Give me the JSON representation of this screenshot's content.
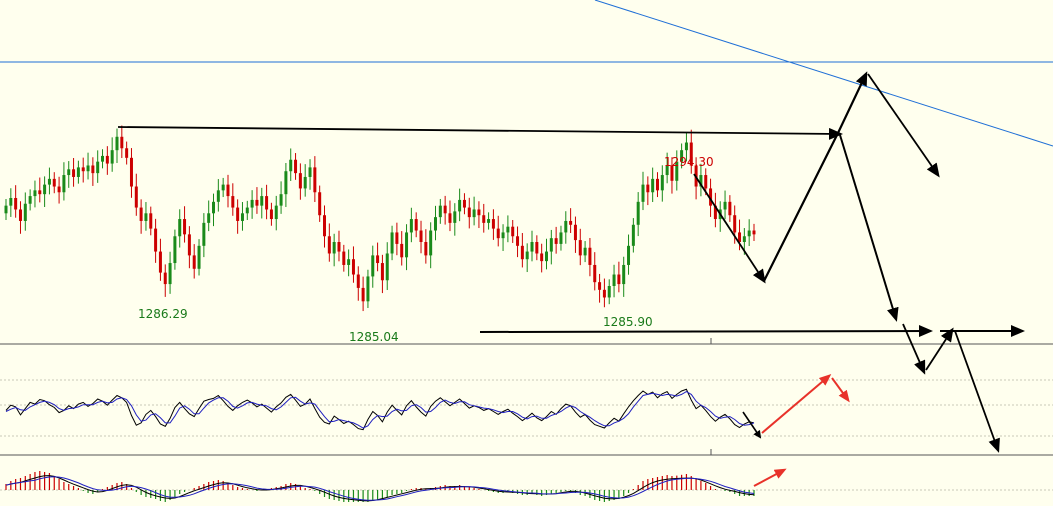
{
  "colors": {
    "background": "#ffffee",
    "bull": "#1a8a1a",
    "bear": "#cc0000",
    "trendline": "#1f6fd6",
    "projection": "#000000",
    "indicator_arrow": "#e8322a",
    "osc_fast": "#000000",
    "osc_slow": "#2020c0",
    "divider": "#555555"
  },
  "chart_data": [
    {
      "type": "candlestick",
      "panel": "price",
      "annotations": [
        {
          "label": "1286.29",
          "kind": "swing-low"
        },
        {
          "label": "1285.04",
          "kind": "swing-low"
        },
        {
          "label": "1285.90",
          "kind": "swing-low"
        },
        {
          "label": "1294.30",
          "kind": "swing-high"
        }
      ],
      "close": [
        1291.0,
        1291.4,
        1290.8,
        1290.2,
        1291.1,
        1291.5,
        1291.8,
        1291.6,
        1292.1,
        1292.4,
        1292.0,
        1291.7,
        1292.6,
        1292.9,
        1292.5,
        1293.0,
        1292.8,
        1293.1,
        1292.7,
        1293.3,
        1293.6,
        1293.2,
        1293.9,
        1294.6,
        1294.0,
        1293.5,
        1292.0,
        1290.9,
        1290.2,
        1290.6,
        1289.8,
        1288.6,
        1287.5,
        1286.9,
        1288.0,
        1289.4,
        1290.3,
        1289.5,
        1288.4,
        1287.7,
        1288.9,
        1290.1,
        1290.6,
        1291.2,
        1291.8,
        1292.1,
        1291.5,
        1290.9,
        1290.2,
        1290.6,
        1290.9,
        1291.3,
        1291.0,
        1291.5,
        1290.8,
        1290.3,
        1291.0,
        1291.6,
        1292.8,
        1293.4,
        1292.7,
        1291.9,
        1292.5,
        1293.0,
        1291.7,
        1290.5,
        1289.4,
        1288.5,
        1289.1,
        1288.6,
        1287.9,
        1288.2,
        1287.4,
        1286.7,
        1286.0,
        1287.3,
        1288.4,
        1288.0,
        1287.1,
        1288.5,
        1289.6,
        1289.0,
        1288.3,
        1289.6,
        1290.3,
        1289.7,
        1289.1,
        1288.4,
        1289.7,
        1290.4,
        1291.0,
        1290.6,
        1290.1,
        1290.7,
        1291.3,
        1290.9,
        1290.4,
        1290.8,
        1290.5,
        1290.1,
        1290.3,
        1289.8,
        1289.3,
        1289.6,
        1289.9,
        1289.4,
        1288.9,
        1288.2,
        1288.6,
        1289.1,
        1288.5,
        1288.1,
        1288.6,
        1289.3,
        1289.0,
        1289.6,
        1290.2,
        1290.0,
        1289.2,
        1288.4,
        1288.8,
        1287.9,
        1287.0,
        1286.6,
        1286.2,
        1286.8,
        1287.4,
        1286.9,
        1287.9,
        1288.9,
        1290.0,
        1291.2,
        1292.1,
        1291.7,
        1292.4,
        1291.8,
        1292.6,
        1293.1,
        1292.3,
        1293.3,
        1293.9,
        1294.3,
        1293.1,
        1292.0,
        1292.6,
        1291.9,
        1291.0,
        1290.3,
        1290.8,
        1291.2,
        1290.5,
        1289.6,
        1289.1,
        1289.4,
        1289.7,
        1289.5
      ]
    },
    {
      "type": "line",
      "panel": "oscillator",
      "series": [
        {
          "values": [
            0.52,
            0.61,
            0.58,
            0.44,
            0.55,
            0.66,
            0.63,
            0.71,
            0.69,
            0.62,
            0.57,
            0.48,
            0.52,
            0.6,
            0.55,
            0.63,
            0.66,
            0.59,
            0.64,
            0.72,
            0.68,
            0.61,
            0.7,
            0.78,
            0.74,
            0.66,
            0.43,
            0.26,
            0.3,
            0.45,
            0.52,
            0.41,
            0.28,
            0.24,
            0.38,
            0.57,
            0.66,
            0.55,
            0.46,
            0.41,
            0.55,
            0.68,
            0.71,
            0.73,
            0.78,
            0.69,
            0.59,
            0.52,
            0.6,
            0.66,
            0.7,
            0.65,
            0.58,
            0.63,
            0.56,
            0.49,
            0.58,
            0.65,
            0.75,
            0.8,
            0.7,
            0.59,
            0.63,
            0.72,
            0.55,
            0.4,
            0.31,
            0.28,
            0.42,
            0.36,
            0.29,
            0.33,
            0.27,
            0.2,
            0.18,
            0.36,
            0.5,
            0.43,
            0.32,
            0.49,
            0.61,
            0.52,
            0.44,
            0.6,
            0.69,
            0.58,
            0.49,
            0.42,
            0.59,
            0.68,
            0.74,
            0.67,
            0.6,
            0.66,
            0.72,
            0.64,
            0.56,
            0.6,
            0.57,
            0.52,
            0.55,
            0.5,
            0.45,
            0.5,
            0.54,
            0.47,
            0.41,
            0.34,
            0.4,
            0.47,
            0.39,
            0.34,
            0.41,
            0.5,
            0.45,
            0.55,
            0.63,
            0.6,
            0.49,
            0.4,
            0.45,
            0.35,
            0.27,
            0.24,
            0.21,
            0.3,
            0.38,
            0.33,
            0.46,
            0.58,
            0.69,
            0.78,
            0.86,
            0.8,
            0.84,
            0.74,
            0.81,
            0.85,
            0.73,
            0.8,
            0.86,
            0.89,
            0.7,
            0.55,
            0.61,
            0.52,
            0.41,
            0.33,
            0.4,
            0.45,
            0.37,
            0.27,
            0.22,
            0.28,
            0.32,
            0.3
          ]
        },
        {
          "values": [
            0.5,
            0.54,
            0.57,
            0.53,
            0.52,
            0.58,
            0.62,
            0.66,
            0.68,
            0.66,
            0.62,
            0.55,
            0.52,
            0.55,
            0.56,
            0.58,
            0.62,
            0.62,
            0.62,
            0.66,
            0.68,
            0.65,
            0.66,
            0.72,
            0.74,
            0.71,
            0.6,
            0.44,
            0.33,
            0.35,
            0.44,
            0.46,
            0.39,
            0.3,
            0.3,
            0.42,
            0.56,
            0.6,
            0.54,
            0.46,
            0.46,
            0.56,
            0.65,
            0.7,
            0.74,
            0.74,
            0.68,
            0.59,
            0.56,
            0.6,
            0.65,
            0.66,
            0.63,
            0.61,
            0.6,
            0.55,
            0.53,
            0.58,
            0.66,
            0.74,
            0.75,
            0.68,
            0.63,
            0.65,
            0.63,
            0.52,
            0.41,
            0.32,
            0.33,
            0.36,
            0.34,
            0.32,
            0.3,
            0.26,
            0.21,
            0.25,
            0.36,
            0.43,
            0.41,
            0.42,
            0.5,
            0.54,
            0.51,
            0.52,
            0.6,
            0.62,
            0.57,
            0.49,
            0.5,
            0.57,
            0.66,
            0.7,
            0.66,
            0.64,
            0.67,
            0.67,
            0.62,
            0.6,
            0.58,
            0.56,
            0.55,
            0.53,
            0.5,
            0.48,
            0.5,
            0.5,
            0.46,
            0.4,
            0.37,
            0.41,
            0.42,
            0.38,
            0.38,
            0.43,
            0.46,
            0.5,
            0.56,
            0.6,
            0.57,
            0.5,
            0.45,
            0.4,
            0.34,
            0.29,
            0.25,
            0.25,
            0.3,
            0.33,
            0.38,
            0.46,
            0.58,
            0.68,
            0.78,
            0.8,
            0.82,
            0.8,
            0.78,
            0.8,
            0.79,
            0.77,
            0.8,
            0.85,
            0.8,
            0.68,
            0.61,
            0.57,
            0.5,
            0.42,
            0.38,
            0.4,
            0.41,
            0.36,
            0.29,
            0.26,
            0.27,
            0.3
          ]
        }
      ]
    },
    {
      "type": "bar",
      "panel": "histogram",
      "values": [
        0.3,
        0.45,
        0.55,
        0.6,
        0.7,
        0.8,
        0.9,
        0.95,
        0.9,
        0.85,
        0.7,
        0.55,
        0.4,
        0.3,
        0.2,
        0.1,
        -0.05,
        -0.15,
        -0.2,
        -0.1,
        0.05,
        0.15,
        0.25,
        0.35,
        0.4,
        0.3,
        0.1,
        -0.1,
        -0.25,
        -0.35,
        -0.4,
        -0.45,
        -0.55,
        -0.6,
        -0.5,
        -0.35,
        -0.2,
        -0.1,
        0.0,
        0.1,
        0.2,
        0.3,
        0.4,
        0.45,
        0.5,
        0.45,
        0.35,
        0.25,
        0.15,
        0.1,
        0.05,
        0.0,
        -0.05,
        0.0,
        0.05,
        0.1,
        0.15,
        0.2,
        0.3,
        0.35,
        0.3,
        0.2,
        0.1,
        0.05,
        -0.05,
        -0.2,
        -0.35,
        -0.45,
        -0.5,
        -0.55,
        -0.6,
        -0.62,
        -0.65,
        -0.7,
        -0.72,
        -0.65,
        -0.55,
        -0.5,
        -0.45,
        -0.35,
        -0.25,
        -0.2,
        -0.15,
        -0.05,
        0.05,
        0.1,
        0.1,
        0.05,
        0.1,
        0.15,
        0.2,
        0.25,
        0.2,
        0.2,
        0.25,
        0.2,
        0.15,
        0.1,
        0.05,
        0.0,
        -0.05,
        -0.1,
        -0.15,
        -0.15,
        -0.1,
        -0.15,
        -0.2,
        -0.25,
        -0.25,
        -0.2,
        -0.25,
        -0.3,
        -0.25,
        -0.2,
        -0.15,
        -0.1,
        -0.05,
        -0.05,
        -0.15,
        -0.25,
        -0.3,
        -0.4,
        -0.5,
        -0.55,
        -0.6,
        -0.55,
        -0.5,
        -0.45,
        -0.3,
        -0.15,
        0.05,
        0.25,
        0.45,
        0.55,
        0.6,
        0.65,
        0.7,
        0.75,
        0.7,
        0.72,
        0.76,
        0.8,
        0.7,
        0.55,
        0.45,
        0.35,
        0.2,
        0.05,
        0.0,
        -0.05,
        -0.1,
        -0.2,
        -0.3,
        -0.3,
        -0.3,
        -0.3
      ]
    }
  ]
}
